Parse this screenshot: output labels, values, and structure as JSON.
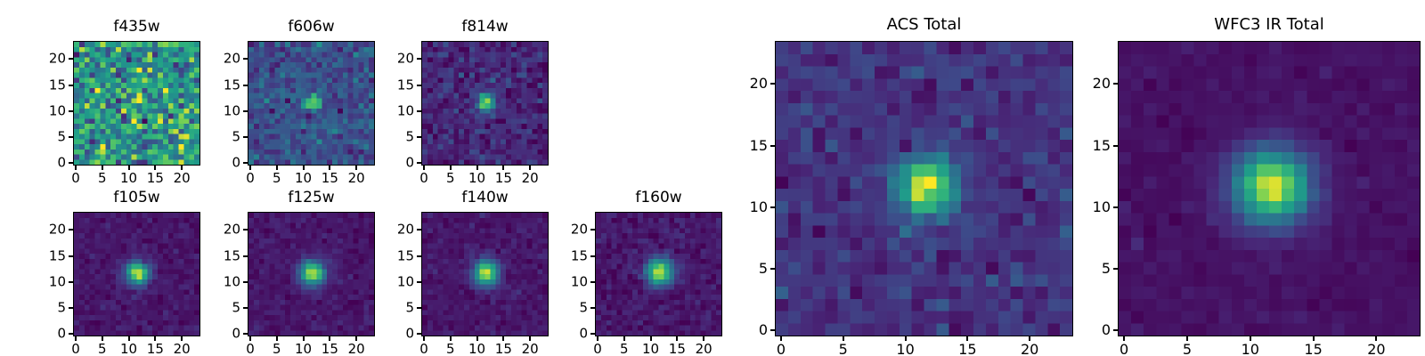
{
  "figure": {
    "background": "#ffffff",
    "colormap": "viridis",
    "frame_color": "#000000",
    "text_color": "#000000"
  },
  "chart_data": [
    {
      "type": "heatmap",
      "title": "f435w",
      "grid_size": 24,
      "x_range": [
        0,
        23
      ],
      "y_range": [
        0,
        23
      ],
      "x_ticks": [
        0,
        5,
        10,
        15,
        20
      ],
      "y_ticks": [
        0,
        5,
        10,
        15,
        20
      ],
      "colormap": "viridis",
      "source": {
        "x": 11.7,
        "y": 11.7,
        "amplitude": 0.27,
        "sigma": 1.4
      },
      "background_level": 0.6,
      "noise_sigma": 0.2,
      "seed": 101
    },
    {
      "type": "heatmap",
      "title": "f606w",
      "grid_size": 24,
      "x_range": [
        0,
        23
      ],
      "y_range": [
        0,
        23
      ],
      "x_ticks": [
        0,
        5,
        10,
        15,
        20
      ],
      "y_ticks": [
        0,
        5,
        10,
        15,
        20
      ],
      "colormap": "viridis",
      "source": {
        "x": 11.7,
        "y": 11.7,
        "amplitude": 0.68,
        "sigma": 1.05
      },
      "background_level": 0.28,
      "noise_sigma": 0.09,
      "seed": 202
    },
    {
      "type": "heatmap",
      "title": "f814w",
      "grid_size": 24,
      "x_range": [
        0,
        23
      ],
      "y_range": [
        0,
        23
      ],
      "x_ticks": [
        0,
        5,
        10,
        15,
        20
      ],
      "y_ticks": [
        0,
        5,
        10,
        15,
        20
      ],
      "colormap": "viridis",
      "source": {
        "x": 11.7,
        "y": 11.7,
        "amplitude": 0.85,
        "sigma": 1.15
      },
      "background_level": 0.13,
      "noise_sigma": 0.07,
      "seed": 303
    },
    {
      "type": "heatmap",
      "title": "f105w",
      "grid_size": 24,
      "x_range": [
        0,
        23
      ],
      "y_range": [
        0,
        23
      ],
      "x_ticks": [
        0,
        5,
        10,
        15,
        20
      ],
      "y_ticks": [
        0,
        5,
        10,
        15,
        20
      ],
      "colormap": "viridis",
      "source": {
        "x": 11.7,
        "y": 11.7,
        "amplitude": 0.92,
        "sigma": 1.55
      },
      "background_level": 0.07,
      "noise_sigma": 0.035,
      "seed": 404
    },
    {
      "type": "heatmap",
      "title": "f125w",
      "grid_size": 24,
      "x_range": [
        0,
        23
      ],
      "y_range": [
        0,
        23
      ],
      "x_ticks": [
        0,
        5,
        10,
        15,
        20
      ],
      "y_ticks": [
        0,
        5,
        10,
        15,
        20
      ],
      "colormap": "viridis",
      "source": {
        "x": 11.7,
        "y": 11.7,
        "amplitude": 0.92,
        "sigma": 1.65
      },
      "background_level": 0.07,
      "noise_sigma": 0.035,
      "seed": 505
    },
    {
      "type": "heatmap",
      "title": "f140w",
      "grid_size": 24,
      "x_range": [
        0,
        23
      ],
      "y_range": [
        0,
        23
      ],
      "x_ticks": [
        0,
        5,
        10,
        15,
        20
      ],
      "y_ticks": [
        0,
        5,
        10,
        15,
        20
      ],
      "colormap": "viridis",
      "source": {
        "x": 11.7,
        "y": 11.7,
        "amplitude": 0.92,
        "sigma": 1.7
      },
      "background_level": 0.07,
      "noise_sigma": 0.035,
      "seed": 606
    },
    {
      "type": "heatmap",
      "title": "f160w",
      "grid_size": 24,
      "x_range": [
        0,
        23
      ],
      "y_range": [
        0,
        23
      ],
      "x_ticks": [
        0,
        5,
        10,
        15,
        20
      ],
      "y_ticks": [
        0,
        5,
        10,
        15,
        20
      ],
      "colormap": "viridis",
      "source": {
        "x": 11.7,
        "y": 11.9,
        "amplitude": 0.9,
        "sigma": 1.85
      },
      "background_level": 0.075,
      "noise_sigma": 0.04,
      "seed": 707
    },
    {
      "type": "heatmap",
      "title": "ACS Total",
      "grid_size": 24,
      "x_range": [
        0,
        23
      ],
      "y_range": [
        0,
        23
      ],
      "x_ticks": [
        0,
        5,
        10,
        15,
        20
      ],
      "y_ticks": [
        0,
        5,
        10,
        15,
        20
      ],
      "colormap": "viridis",
      "source": {
        "x": 11.7,
        "y": 11.7,
        "amplitude": 0.85,
        "sigma": 1.7
      },
      "background_level": 0.17,
      "noise_sigma": 0.06,
      "seed": 808
    },
    {
      "type": "heatmap",
      "title": "WFC3 IR Total",
      "grid_size": 24,
      "x_range": [
        0,
        23
      ],
      "y_range": [
        0,
        23
      ],
      "x_ticks": [
        0,
        5,
        10,
        15,
        20
      ],
      "y_ticks": [
        0,
        5,
        10,
        15,
        20
      ],
      "colormap": "viridis",
      "source": {
        "x": 11.7,
        "y": 11.7,
        "amplitude": 0.95,
        "sigma": 2.1
      },
      "background_level": 0.055,
      "noise_sigma": 0.02,
      "seed": 909
    }
  ]
}
